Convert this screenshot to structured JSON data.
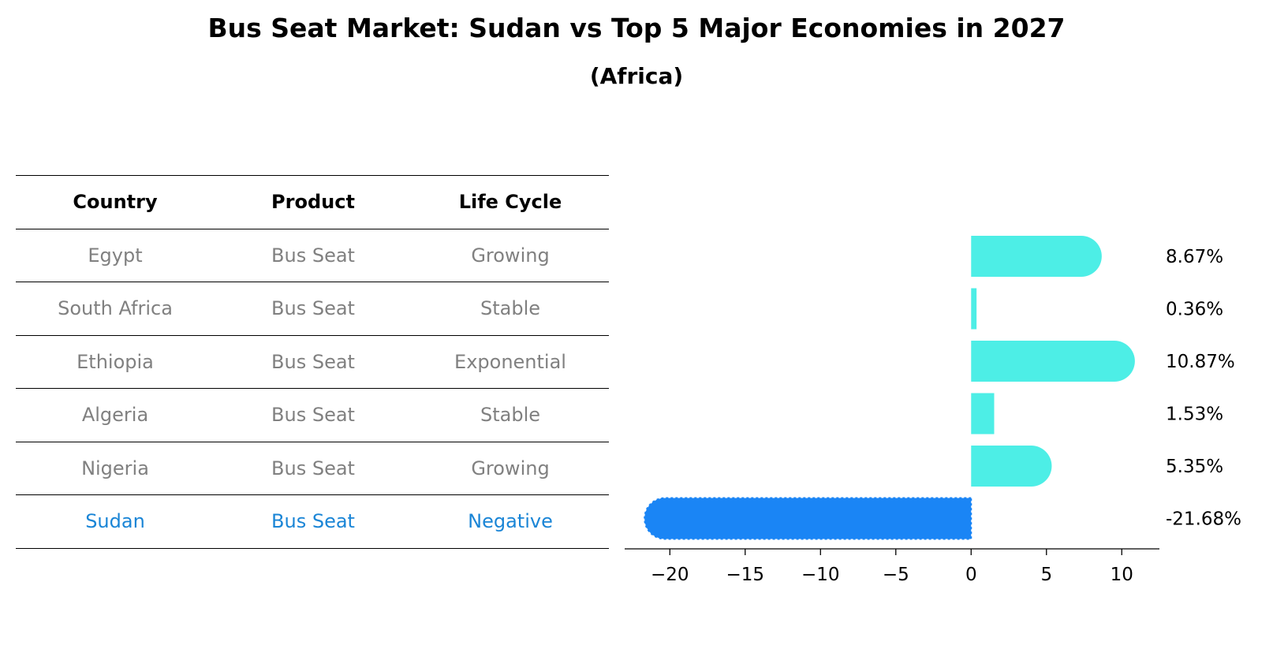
{
  "title": "Bus Seat Market: Sudan vs Top 5 Major Economies in 2027",
  "subtitle": "(Africa)",
  "table": {
    "headers": [
      "Country",
      "Product",
      "Life Cycle"
    ],
    "rows": [
      [
        "Egypt",
        "Bus Seat",
        "Growing"
      ],
      [
        "South Africa",
        "Bus Seat",
        "Stable"
      ],
      [
        "Ethiopia",
        "Bus Seat",
        "Exponential"
      ],
      [
        "Algeria",
        "Bus Seat",
        "Stable"
      ],
      [
        "Nigeria",
        "Bus Seat",
        "Growing"
      ],
      [
        "Sudan",
        "Bus Seat",
        "Negative"
      ]
    ]
  },
  "colors": {
    "bar": "#4deee6",
    "highlight": "#1a85f5",
    "highlight_text": "#1a85d6",
    "muted_text": "#808080"
  },
  "chart_data": {
    "type": "bar",
    "orientation": "horizontal",
    "categories": [
      "Egypt",
      "South Africa",
      "Ethiopia",
      "Algeria",
      "Nigeria",
      "Sudan"
    ],
    "values": [
      8.67,
      0.36,
      10.87,
      1.53,
      5.35,
      -21.68
    ],
    "data_labels": [
      "8.67%",
      "0.36%",
      "10.87%",
      "1.53%",
      "5.35%",
      "-21.68%"
    ],
    "highlight": "Sudan",
    "xlim": [
      -23,
      12.5
    ],
    "xticks": [
      -20,
      -15,
      -10,
      -5,
      0,
      5,
      10
    ],
    "xtick_labels": [
      "−20",
      "−15",
      "−10",
      "−5",
      "0",
      "5",
      "10"
    ],
    "grid": false
  }
}
